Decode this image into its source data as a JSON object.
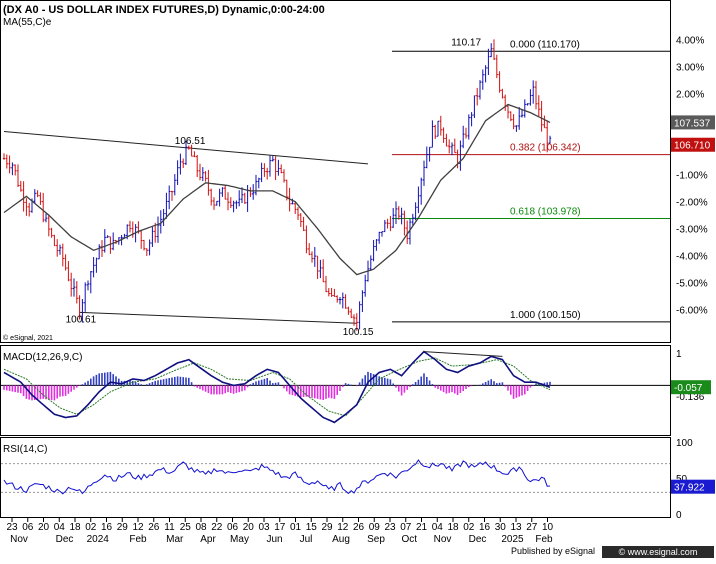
{
  "header": {
    "title": "(DX A0 - US DOLLAR INDEX FUTURES,D) Dynamic,0:00-24:00",
    "ma_label": "MA(55,C)e",
    "copyright": "© eSignal, 2021"
  },
  "footer": {
    "published": "Published by eSignal",
    "website": "© www.esignal.com"
  },
  "colors": {
    "price_bars": "#1010b0",
    "down_bars": "#d01010",
    "ma_line": "#404040",
    "fib_0382": "#b01010",
    "fib_0618": "#0a8a0a",
    "macd_line": "#101080",
    "macd_hist_pos": "#3040c0",
    "macd_hist_neg": "#e030e0",
    "rsi_line": "#1010d0",
    "badge_gray": "#5a5a5a",
    "badge_red": "#c01010",
    "badge_green": "#1a8a1a",
    "badge_blue": "#1a1ad0"
  },
  "chart_data": [
    {
      "type": "line",
      "name": "price",
      "ylim": [
        99.7,
        111.7
      ],
      "y_axis_labels": [
        "4.00%",
        "3.00%",
        "2.00%",
        "1.00%",
        "0.00%",
        "-1.00%",
        "-2.00%",
        "-3.00%",
        "-4.00%",
        "-5.00%",
        "-6.00%"
      ],
      "y_axis_values": [
        110.6,
        109.6,
        108.6,
        107.6,
        106.6,
        105.6,
        104.6,
        103.6,
        102.6,
        101.6,
        100.6
      ],
      "close_path": [
        [
          0,
          106.2
        ],
        [
          3,
          106.0
        ],
        [
          6,
          105.0
        ],
        [
          9,
          104.4
        ],
        [
          12,
          104.8
        ],
        [
          15,
          103.8
        ],
        [
          18,
          103.0
        ],
        [
          21,
          102.5
        ],
        [
          24,
          101.5
        ],
        [
          27,
          100.6
        ],
        [
          30,
          101.8
        ],
        [
          33,
          102.5
        ],
        [
          36,
          103.2
        ],
        [
          39,
          103.0
        ],
        [
          42,
          103.4
        ],
        [
          45,
          103.8
        ],
        [
          48,
          103.4
        ],
        [
          51,
          102.9
        ],
        [
          54,
          103.5
        ],
        [
          57,
          104.2
        ],
        [
          60,
          105.0
        ],
        [
          63,
          106.1
        ],
        [
          66,
          106.51
        ],
        [
          69,
          105.8
        ],
        [
          72,
          105.3
        ],
        [
          75,
          104.6
        ],
        [
          78,
          104.9
        ],
        [
          81,
          104.7
        ],
        [
          84,
          104.5
        ],
        [
          87,
          104.9
        ],
        [
          90,
          105.2
        ],
        [
          93,
          105.8
        ],
        [
          96,
          106.1
        ],
        [
          99,
          105.5
        ],
        [
          102,
          104.6
        ],
        [
          105,
          104.2
        ],
        [
          108,
          103.1
        ],
        [
          111,
          102.5
        ],
        [
          114,
          101.6
        ],
        [
          117,
          100.9
        ],
        [
          120,
          101.2
        ],
        [
          123,
          100.7
        ],
        [
          126,
          100.15
        ],
        [
          129,
          101.8
        ],
        [
          132,
          102.8
        ],
        [
          135,
          103.6
        ],
        [
          138,
          103.9
        ],
        [
          141,
          104.2
        ],
        [
          144,
          103.4
        ],
        [
          147,
          104.6
        ],
        [
          150,
          106.0
        ],
        [
          153,
          107.2
        ],
        [
          156,
          107.4
        ],
        [
          159,
          106.6
        ],
        [
          162,
          106.2
        ],
        [
          165,
          107.2
        ],
        [
          168,
          108.3
        ],
        [
          171,
          109.2
        ],
        [
          174,
          110.17
        ],
        [
          177,
          108.9
        ],
        [
          180,
          108.0
        ],
        [
          183,
          107.4
        ],
        [
          186,
          108.0
        ],
        [
          189,
          108.7
        ],
        [
          192,
          107.5
        ],
        [
          195,
          106.71
        ]
      ],
      "ma55_path": [
        [
          0,
          104.2
        ],
        [
          8,
          104.8
        ],
        [
          16,
          104.1
        ],
        [
          24,
          103.3
        ],
        [
          32,
          102.8
        ],
        [
          40,
          103.1
        ],
        [
          48,
          103.5
        ],
        [
          56,
          103.8
        ],
        [
          64,
          104.7
        ],
        [
          72,
          105.3
        ],
        [
          80,
          105.2
        ],
        [
          88,
          105.0
        ],
        [
          96,
          105.0
        ],
        [
          104,
          104.6
        ],
        [
          112,
          103.6
        ],
        [
          120,
          102.5
        ],
        [
          126,
          101.9
        ],
        [
          132,
          102.1
        ],
        [
          140,
          102.8
        ],
        [
          148,
          104.0
        ],
        [
          156,
          105.4
        ],
        [
          164,
          106.2
        ],
        [
          172,
          107.6
        ],
        [
          180,
          108.2
        ],
        [
          188,
          107.9
        ],
        [
          195,
          107.537
        ]
      ],
      "trendline_upper": [
        [
          0,
          107.2
        ],
        [
          130,
          106.0
        ]
      ],
      "trendline_lower": [
        [
          27,
          100.5
        ],
        [
          126,
          100.1
        ]
      ],
      "annotations": [
        {
          "text": "106.51",
          "x": 66,
          "y": 106.51
        },
        {
          "text": "100.61",
          "x": 27,
          "y": 100.61
        },
        {
          "text": "100.15",
          "x": 126,
          "y": 100.15
        },
        {
          "text": "110.17",
          "x": 174,
          "y": 110.17
        }
      ],
      "fib_levels": [
        {
          "label": "0.000 (110.170)",
          "value": 110.17
        },
        {
          "label": "0.382 (106.342)",
          "value": 106.342
        },
        {
          "label": "0.618 (103.978)",
          "value": 103.978
        },
        {
          "label": "1.000 (100.150)",
          "value": 100.15
        }
      ],
      "badges": [
        {
          "text": "107.537",
          "value": 107.537
        },
        {
          "text": "106.710",
          "value": 106.71
        }
      ]
    },
    {
      "type": "line",
      "name": "MACD(12,26,9,C)",
      "title": "MACD(12,26,9,C)",
      "ylim": [
        -1.45,
        1.1
      ],
      "y_axis_labels": [
        "1",
        "-0.136"
      ],
      "y_axis_values": [
        1.0,
        -0.136
      ],
      "badge": {
        "text": "-0.057",
        "value": -0.057
      },
      "macd_path": [
        [
          0,
          0.4
        ],
        [
          6,
          0.1
        ],
        [
          10,
          -0.3
        ],
        [
          14,
          -0.6
        ],
        [
          18,
          -0.9
        ],
        [
          22,
          -1.0
        ],
        [
          26,
          -0.95
        ],
        [
          30,
          -0.6
        ],
        [
          34,
          -0.2
        ],
        [
          38,
          0.1
        ],
        [
          42,
          0.05
        ],
        [
          46,
          0.2
        ],
        [
          50,
          0.15
        ],
        [
          54,
          0.3
        ],
        [
          58,
          0.5
        ],
        [
          62,
          0.7
        ],
        [
          66,
          0.8
        ],
        [
          70,
          0.55
        ],
        [
          74,
          0.3
        ],
        [
          78,
          0.1
        ],
        [
          82,
          0.0
        ],
        [
          86,
          0.05
        ],
        [
          90,
          0.3
        ],
        [
          94,
          0.5
        ],
        [
          98,
          0.4
        ],
        [
          102,
          0.0
        ],
        [
          106,
          -0.4
        ],
        [
          110,
          -0.7
        ],
        [
          114,
          -1.0
        ],
        [
          118,
          -1.15
        ],
        [
          122,
          -0.9
        ],
        [
          126,
          -0.6
        ],
        [
          130,
          0.1
        ],
        [
          134,
          0.4
        ],
        [
          138,
          0.5
        ],
        [
          142,
          0.3
        ],
        [
          146,
          0.7
        ],
        [
          150,
          1.05
        ],
        [
          154,
          0.8
        ],
        [
          158,
          0.5
        ],
        [
          162,
          0.4
        ],
        [
          166,
          0.6
        ],
        [
          170,
          0.7
        ],
        [
          174,
          0.9
        ],
        [
          178,
          0.8
        ],
        [
          182,
          0.3
        ],
        [
          186,
          0.1
        ],
        [
          190,
          0.1
        ],
        [
          195,
          -0.057
        ]
      ],
      "signal_path": [
        [
          0,
          0.5
        ],
        [
          8,
          0.2
        ],
        [
          14,
          -0.3
        ],
        [
          20,
          -0.7
        ],
        [
          26,
          -0.9
        ],
        [
          32,
          -0.6
        ],
        [
          38,
          -0.2
        ],
        [
          46,
          0.1
        ],
        [
          54,
          0.2
        ],
        [
          62,
          0.5
        ],
        [
          68,
          0.7
        ],
        [
          74,
          0.5
        ],
        [
          80,
          0.2
        ],
        [
          88,
          0.15
        ],
        [
          96,
          0.4
        ],
        [
          102,
          0.2
        ],
        [
          108,
          -0.3
        ],
        [
          116,
          -0.8
        ],
        [
          122,
          -0.95
        ],
        [
          128,
          -0.4
        ],
        [
          134,
          0.2
        ],
        [
          140,
          0.45
        ],
        [
          148,
          0.75
        ],
        [
          154,
          0.85
        ],
        [
          160,
          0.6
        ],
        [
          168,
          0.65
        ],
        [
          176,
          0.8
        ],
        [
          182,
          0.6
        ],
        [
          188,
          0.15
        ],
        [
          195,
          -0.136
        ]
      ],
      "trendline": [
        [
          150,
          1.05
        ],
        [
          178,
          0.9
        ]
      ]
    },
    {
      "type": "line",
      "name": "RSI(14,C)",
      "title": "RSI(14,C)",
      "ylim": [
        0,
        100
      ],
      "y_axis_labels": [
        "100",
        "50",
        "0"
      ],
      "y_axis_values": [
        100,
        50,
        0
      ],
      "guides": [
        70,
        30
      ],
      "badge": {
        "text": "37.922",
        "value": 37.922
      },
      "rsi_path": [
        [
          0,
          45
        ],
        [
          4,
          38
        ],
        [
          8,
          33
        ],
        [
          12,
          42
        ],
        [
          16,
          37
        ],
        [
          20,
          30
        ],
        [
          24,
          38
        ],
        [
          28,
          28
        ],
        [
          32,
          45
        ],
        [
          36,
          55
        ],
        [
          40,
          48
        ],
        [
          44,
          56
        ],
        [
          48,
          50
        ],
        [
          52,
          55
        ],
        [
          56,
          62
        ],
        [
          60,
          58
        ],
        [
          64,
          70
        ],
        [
          68,
          60
        ],
        [
          72,
          54
        ],
        [
          76,
          63
        ],
        [
          80,
          56
        ],
        [
          84,
          62
        ],
        [
          88,
          58
        ],
        [
          92,
          66
        ],
        [
          96,
          60
        ],
        [
          100,
          50
        ],
        [
          104,
          55
        ],
        [
          108,
          42
        ],
        [
          112,
          46
        ],
        [
          116,
          33
        ],
        [
          120,
          40
        ],
        [
          124,
          30
        ],
        [
          128,
          42
        ],
        [
          132,
          50
        ],
        [
          136,
          58
        ],
        [
          140,
          52
        ],
        [
          144,
          62
        ],
        [
          148,
          74
        ],
        [
          152,
          66
        ],
        [
          156,
          70
        ],
        [
          160,
          60
        ],
        [
          164,
          72
        ],
        [
          168,
          64
        ],
        [
          172,
          72
        ],
        [
          176,
          62
        ],
        [
          180,
          55
        ],
        [
          184,
          66
        ],
        [
          188,
          45
        ],
        [
          192,
          50
        ],
        [
          195,
          37.922
        ]
      ]
    }
  ],
  "x_axis": {
    "days": [
      {
        "text": "23",
        "pos": 0
      },
      {
        "text": "06",
        "pos": 9
      },
      {
        "text": "20",
        "pos": 18
      },
      {
        "text": "04",
        "pos": 27
      },
      {
        "text": "18",
        "pos": 36
      },
      {
        "text": "02",
        "pos": 45
      },
      {
        "text": "16",
        "pos": 54
      },
      {
        "text": "29",
        "pos": 63
      },
      {
        "text": "12",
        "pos": 72
      },
      {
        "text": "26",
        "pos": 81
      },
      {
        "text": "11",
        "pos": 90
      },
      {
        "text": "25",
        "pos": 99
      },
      {
        "text": "08",
        "pos": 108
      },
      {
        "text": "22",
        "pos": 117
      },
      {
        "text": "06",
        "pos": 126
      },
      {
        "text": "20",
        "pos": 135
      },
      {
        "text": "03",
        "pos": 144
      },
      {
        "text": "17",
        "pos": 153
      },
      {
        "text": "01",
        "pos": 162
      },
      {
        "text": "15",
        "pos": 171
      },
      {
        "text": "29",
        "pos": 180
      },
      {
        "text": "12",
        "pos": 189
      },
      {
        "text": "26",
        "pos": 198
      },
      {
        "text": "09",
        "pos": 207
      },
      {
        "text": "23",
        "pos": 216
      },
      {
        "text": "07",
        "pos": 225
      },
      {
        "text": "21",
        "pos": 234
      },
      {
        "text": "04",
        "pos": 243
      },
      {
        "text": "18",
        "pos": 252
      },
      {
        "text": "02",
        "pos": 261
      },
      {
        "text": "16",
        "pos": 270
      },
      {
        "text": "30",
        "pos": 279
      },
      {
        "text": "13",
        "pos": 288
      },
      {
        "text": "27",
        "pos": 297
      },
      {
        "text": "10",
        "pos": 306
      }
    ],
    "months": [
      {
        "text": "Nov",
        "pos": 4
      },
      {
        "text": "Dec",
        "pos": 30
      },
      {
        "text": "2024",
        "pos": 49
      },
      {
        "text": "Feb",
        "pos": 72
      },
      {
        "text": "Mar",
        "pos": 93
      },
      {
        "text": "Apr",
        "pos": 112
      },
      {
        "text": "May",
        "pos": 130
      },
      {
        "text": "Jun",
        "pos": 150
      },
      {
        "text": "Jul",
        "pos": 168
      },
      {
        "text": "Aug",
        "pos": 188
      },
      {
        "text": "Sep",
        "pos": 208
      },
      {
        "text": "Oct",
        "pos": 227
      },
      {
        "text": "Nov",
        "pos": 246
      },
      {
        "text": "Dec",
        "pos": 266
      },
      {
        "text": "2025",
        "pos": 286
      },
      {
        "text": "Feb",
        "pos": 304
      }
    ]
  }
}
